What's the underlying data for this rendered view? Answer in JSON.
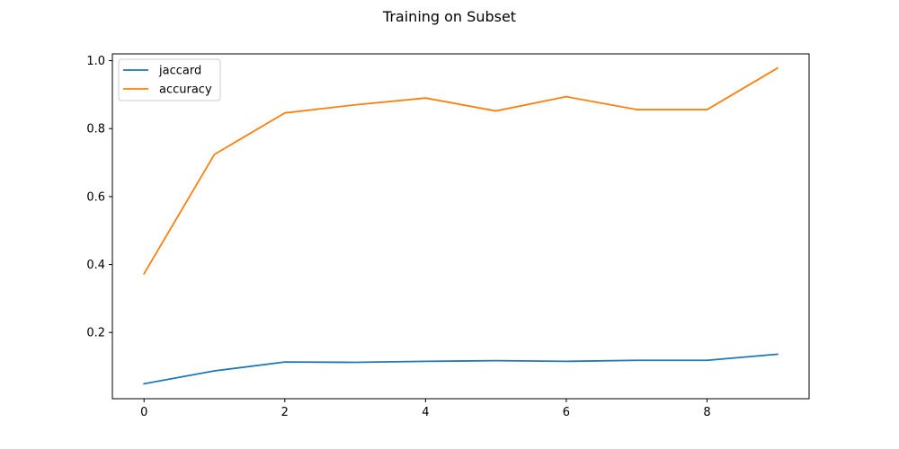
{
  "chart_data": {
    "type": "line",
    "title": "Training on Subset",
    "xlabel": "",
    "ylabel": "",
    "xlim": [
      -0.45,
      9.45
    ],
    "ylim": [
      0.005,
      1.02
    ],
    "xticks": [
      0,
      2,
      4,
      6,
      8
    ],
    "yticks": [
      0.2,
      0.4,
      0.6,
      0.8,
      1.0
    ],
    "xtick_labels": [
      "0",
      "2",
      "4",
      "6",
      "8"
    ],
    "ytick_labels": [
      "0.2",
      "0.4",
      "0.6",
      "0.8",
      "1.0"
    ],
    "grid": false,
    "legend_position": "upper-left",
    "x": [
      0,
      1,
      2,
      3,
      4,
      5,
      6,
      7,
      8,
      9
    ],
    "series": [
      {
        "name": "jaccard",
        "color": "#1f77b4",
        "values": [
          0.049,
          0.087,
          0.113,
          0.112,
          0.115,
          0.117,
          0.115,
          0.118,
          0.118,
          0.136
        ]
      },
      {
        "name": "accuracy",
        "color": "#ff7f0e",
        "values": [
          0.373,
          0.724,
          0.846,
          0.87,
          0.89,
          0.852,
          0.894,
          0.856,
          0.856,
          0.978
        ]
      }
    ]
  }
}
